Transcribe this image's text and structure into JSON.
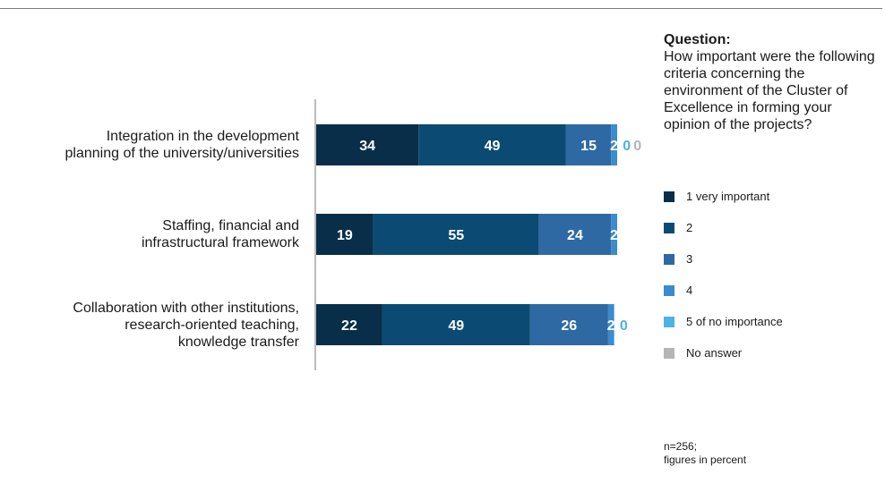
{
  "question": {
    "title": "Question:",
    "text": "How important were the following criteria concerning the environment of the Cluster of Excellence in forming your opinion of the projects?"
  },
  "note": {
    "line1": "n=256;",
    "line2": "figures in percent"
  },
  "colors": {
    "very_important": "#082e4a",
    "two": "#0b4a73",
    "three": "#2f69a3",
    "four": "#3a8bcf",
    "no_importance": "#4db2e6",
    "no_answer": "#b5b5b5"
  },
  "chart_data": {
    "type": "bar",
    "orientation": "horizontal",
    "stacked": true,
    "categories": [
      [
        "Integration in the development",
        "planning of the university/universities"
      ],
      [
        "Staffing, financial and",
        "infrastructural framework"
      ],
      [
        "Collaboration with other institutions,",
        "research-oriented teaching,",
        "knowledge transfer"
      ]
    ],
    "series": [
      {
        "name": "1 very important",
        "values": [
          34,
          19,
          22
        ],
        "color": "#082e4a"
      },
      {
        "name": "2",
        "values": [
          49,
          55,
          49
        ],
        "color": "#0b4a73"
      },
      {
        "name": "3",
        "values": [
          15,
          24,
          26
        ],
        "color": "#2f69a3"
      },
      {
        "name": "4",
        "values": [
          2,
          2,
          2
        ],
        "color": "#3a8bcf"
      },
      {
        "name": "5 of no importance",
        "values": [
          0,
          null,
          0
        ],
        "color": "#4db2e6"
      },
      {
        "name": "No answer",
        "values": [
          0,
          null,
          null
        ],
        "color": "#b5b5b5"
      }
    ],
    "xlim": [
      0,
      100
    ],
    "legend_position": "right"
  }
}
